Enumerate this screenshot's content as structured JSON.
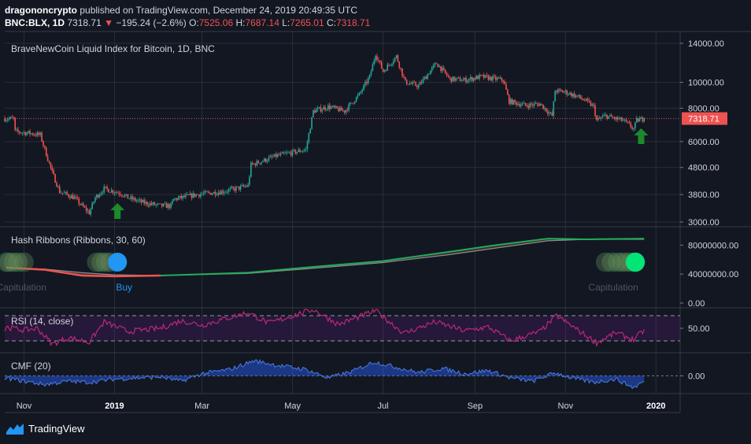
{
  "header": {
    "author": "dragononcrypto",
    "published_text": "published on TradingView.com, December 24, 2019 20:49:35 UTC",
    "symbol": "BNC:BLX, 1D",
    "last": "7318.71",
    "change": "−195.24 (−2.6%)",
    "o_label": "O:",
    "o": "7525.06",
    "h_label": "H:",
    "h": "7687.14",
    "l_label": "L:",
    "l": "7265.01",
    "c_label": "C:",
    "c": "7318.71"
  },
  "colors": {
    "bg": "#131722",
    "grid": "#2a2e39",
    "up": "#26a69a",
    "down": "#ef5350",
    "rsi": "#b2267a",
    "cmf": "#2962ff",
    "arrow": "#1b8a2c",
    "green_ribbon": "#22ab5a",
    "gray_ribbon": "#8d8d8d",
    "buy": "#2196f3",
    "capitulation": "#2ebd70"
  },
  "footer": {
    "brand": "TradingView",
    "logo_icon": "tradingview-logo-icon"
  },
  "chart_data": [
    {
      "type": "candlestick",
      "title": "BraveNewCoin Liquid Index for Bitcoin, 1D, BNC",
      "scale": "log",
      "ylim": [
        2900,
        15000
      ],
      "y_ticks": [
        {
          "value": 14000,
          "label": "14000.00"
        },
        {
          "value": 10000,
          "label": "10000.00"
        },
        {
          "value": 8000,
          "label": "8000.00"
        },
        {
          "value": 6000,
          "label": "6000.00"
        },
        {
          "value": 4800,
          "label": "4800.00"
        },
        {
          "value": 3800,
          "label": "3800.00"
        },
        {
          "value": 3000,
          "label": "3000.00"
        }
      ],
      "last_price": {
        "value": 7318.71,
        "label": "7318.71"
      },
      "price_path": [
        [
          "2018-10-25",
          6550
        ],
        [
          "2018-11-05",
          6450
        ],
        [
          "2018-11-12",
          6350
        ],
        [
          "2018-11-15",
          5600
        ],
        [
          "2018-11-20",
          4600
        ],
        [
          "2018-11-25",
          3900
        ],
        [
          "2018-12-05",
          3700
        ],
        [
          "2018-12-10",
          3450
        ],
        [
          "2018-12-15",
          3250
        ],
        [
          "2018-12-19",
          3700
        ],
        [
          "2018-12-25",
          4000
        ],
        [
          "2019-01-05",
          3850
        ],
        [
          "2019-01-10",
          3700
        ],
        [
          "2019-01-20",
          3550
        ],
        [
          "2019-02-01",
          3450
        ],
        [
          "2019-02-08",
          3450
        ],
        [
          "2019-02-10",
          3650
        ],
        [
          "2019-02-25",
          3800
        ],
        [
          "2019-03-15",
          3900
        ],
        [
          "2019-04-01",
          4100
        ],
        [
          "2019-04-03",
          4900
        ],
        [
          "2019-04-20",
          5300
        ],
        [
          "2019-05-10",
          5600
        ],
        [
          "2019-05-15",
          7800
        ],
        [
          "2019-05-25",
          8100
        ],
        [
          "2019-06-05",
          7800
        ],
        [
          "2019-06-15",
          9000
        ],
        [
          "2019-06-22",
          10500
        ],
        [
          "2019-06-26",
          12800
        ],
        [
          "2019-07-01",
          11000
        ],
        [
          "2019-07-10",
          12500
        ],
        [
          "2019-07-16",
          10000
        ],
        [
          "2019-07-25",
          9700
        ],
        [
          "2019-08-06",
          11800
        ],
        [
          "2019-08-15",
          10300
        ],
        [
          "2019-08-25",
          10200
        ],
        [
          "2019-09-05",
          10500
        ],
        [
          "2019-09-20",
          10200
        ],
        [
          "2019-09-24",
          8500
        ],
        [
          "2019-10-05",
          8200
        ],
        [
          "2019-10-15",
          8300
        ],
        [
          "2019-10-23",
          7500
        ],
        [
          "2019-10-25",
          9300
        ],
        [
          "2019-11-01",
          9200
        ],
        [
          "2019-11-10",
          8800
        ],
        [
          "2019-11-15",
          8500
        ],
        [
          "2019-11-20",
          8100
        ],
        [
          "2019-11-22",
          7200
        ],
        [
          "2019-11-28",
          7500
        ],
        [
          "2019-12-05",
          7300
        ],
        [
          "2019-12-10",
          7200
        ],
        [
          "2019-12-17",
          6700
        ],
        [
          "2019-12-19",
          7200
        ],
        [
          "2019-12-24",
          7318.71
        ]
      ],
      "markers": [
        {
          "date": "2019-01-03",
          "type": "up-arrow",
          "note": "Buy"
        },
        {
          "date": "2019-12-22",
          "type": "up-arrow",
          "note": "Capitulation"
        }
      ]
    },
    {
      "type": "line",
      "title": "Hash Ribbons (Ribbons, 30, 60)",
      "ylim": [
        0,
        100000000
      ],
      "y_ticks": [
        {
          "value": 80000000,
          "label": "80000000.00"
        },
        {
          "value": 40000000,
          "label": "40000000.00"
        },
        {
          "value": 0,
          "label": "0.00"
        }
      ],
      "series": [
        {
          "name": "30",
          "points": [
            [
              "2018-10-20",
              49000000
            ],
            [
              "2018-11-15",
              46000000
            ],
            [
              "2018-12-10",
              38000000
            ],
            [
              "2019-01-01",
              37000000
            ],
            [
              "2019-02-01",
              38000000
            ],
            [
              "2019-04-01",
              42000000
            ],
            [
              "2019-05-15",
              50000000
            ],
            [
              "2019-07-01",
              58000000
            ],
            [
              "2019-08-15",
              71000000
            ],
            [
              "2019-09-15",
              80000000
            ],
            [
              "2019-10-20",
              89000000
            ],
            [
              "2019-11-15",
              88000000
            ],
            [
              "2019-12-24",
              89000000
            ]
          ]
        },
        {
          "name": "60",
          "points": [
            [
              "2018-10-20",
              49000000
            ],
            [
              "2018-11-15",
              47000000
            ],
            [
              "2018-12-10",
              42000000
            ],
            [
              "2019-01-01",
              39000000
            ],
            [
              "2019-02-01",
              38000000
            ],
            [
              "2019-04-01",
              41000000
            ],
            [
              "2019-05-15",
              48000000
            ],
            [
              "2019-07-01",
              56000000
            ],
            [
              "2019-08-15",
              67000000
            ],
            [
              "2019-09-15",
              76000000
            ],
            [
              "2019-10-20",
              86000000
            ],
            [
              "2019-11-15",
              88000000
            ],
            [
              "2019-12-24",
              88000000
            ]
          ]
        }
      ],
      "capitulation_markers": [
        [
          "2018-10-20",
          "2018-10-22",
          "2018-10-25",
          "2018-10-28",
          "2018-11-01",
          "2018-12-20",
          "2018-12-23",
          "2018-12-26",
          "2018-12-29"
        ],
        [
          "2019-11-28",
          "2019-12-02",
          "2019-12-06",
          "2019-12-09",
          "2019-12-12",
          "2019-12-15",
          "2019-12-18"
        ]
      ],
      "buy_date": "2019-01-03",
      "labels": [
        {
          "date": "2018-11-01",
          "text": "Capitulation"
        },
        {
          "date": "2019-01-02",
          "text": "Buy"
        },
        {
          "date": "2019-12-05",
          "text": "Capitulation"
        }
      ]
    },
    {
      "type": "line",
      "title": "RSI (14, close)",
      "ylim": [
        15,
        80
      ],
      "bands": [
        30,
        70
      ],
      "y_ticks": [
        {
          "value": 50,
          "label": "50.00"
        }
      ],
      "values_by_date": [
        [
          "2018-10-20",
          52
        ],
        [
          "2018-11-01",
          47
        ],
        [
          "2018-11-10",
          50
        ],
        [
          "2018-11-20",
          25
        ],
        [
          "2018-12-01",
          35
        ],
        [
          "2018-12-15",
          28
        ],
        [
          "2018-12-25",
          60
        ],
        [
          "2019-01-10",
          45
        ],
        [
          "2019-02-01",
          50
        ],
        [
          "2019-02-15",
          62
        ],
        [
          "2019-03-01",
          55
        ],
        [
          "2019-04-01",
          75
        ],
        [
          "2019-04-15",
          58
        ],
        [
          "2019-05-15",
          80
        ],
        [
          "2019-06-01",
          56
        ],
        [
          "2019-06-26",
          78
        ],
        [
          "2019-07-15",
          42
        ],
        [
          "2019-08-05",
          60
        ],
        [
          "2019-08-25",
          46
        ],
        [
          "2019-09-10",
          52
        ],
        [
          "2019-09-25",
          30
        ],
        [
          "2019-10-15",
          45
        ],
        [
          "2019-10-26",
          70
        ],
        [
          "2019-11-10",
          46
        ],
        [
          "2019-11-22",
          27
        ],
        [
          "2019-12-05",
          43
        ],
        [
          "2019-12-17",
          32
        ],
        [
          "2019-12-24",
          47
        ]
      ]
    },
    {
      "type": "area",
      "title": "CMF (20)",
      "ylim": [
        -0.15,
        0.2
      ],
      "y_ticks": [
        {
          "value": 0,
          "label": "0.00"
        }
      ],
      "values_by_date": [
        [
          "2018-10-20",
          -0.02
        ],
        [
          "2018-11-01",
          -0.05
        ],
        [
          "2018-11-15",
          -0.08
        ],
        [
          "2018-12-01",
          -0.05
        ],
        [
          "2018-12-15",
          -0.06
        ],
        [
          "2019-01-01",
          -0.03
        ],
        [
          "2019-01-15",
          -0.02
        ],
        [
          "2019-02-01",
          -0.01
        ],
        [
          "2019-02-15",
          -0.05
        ],
        [
          "2019-03-01",
          0.02
        ],
        [
          "2019-03-20",
          0.06
        ],
        [
          "2019-04-05",
          0.14
        ],
        [
          "2019-04-20",
          0.1
        ],
        [
          "2019-05-10",
          0.06
        ],
        [
          "2019-05-25",
          -0.02
        ],
        [
          "2019-06-10",
          0.04
        ],
        [
          "2019-06-25",
          0.13
        ],
        [
          "2019-07-10",
          0.08
        ],
        [
          "2019-07-25",
          0.03
        ],
        [
          "2019-08-10",
          0.07
        ],
        [
          "2019-08-25",
          0.02
        ],
        [
          "2019-09-10",
          0.05
        ],
        [
          "2019-09-25",
          -0.02
        ],
        [
          "2019-10-10",
          -0.05
        ],
        [
          "2019-10-25",
          0.03
        ],
        [
          "2019-11-05",
          -0.02
        ],
        [
          "2019-11-20",
          -0.06
        ],
        [
          "2019-12-05",
          -0.03
        ],
        [
          "2019-12-17",
          -0.11
        ],
        [
          "2019-12-24",
          -0.05
        ]
      ]
    },
    {
      "type": "axis",
      "x_ticks": [
        {
          "date": "2018-11-01",
          "label": "Nov"
        },
        {
          "date": "2019-01-01",
          "label": "2019",
          "bold": true
        },
        {
          "date": "2019-03-01",
          "label": "Mar"
        },
        {
          "date": "2019-05-01",
          "label": "May"
        },
        {
          "date": "2019-07-01",
          "label": "Jul"
        },
        {
          "date": "2019-09-01",
          "label": "Sep"
        },
        {
          "date": "2019-11-01",
          "label": "Nov"
        },
        {
          "date": "2020-01-01",
          "label": "2020",
          "bold": true
        }
      ]
    }
  ]
}
